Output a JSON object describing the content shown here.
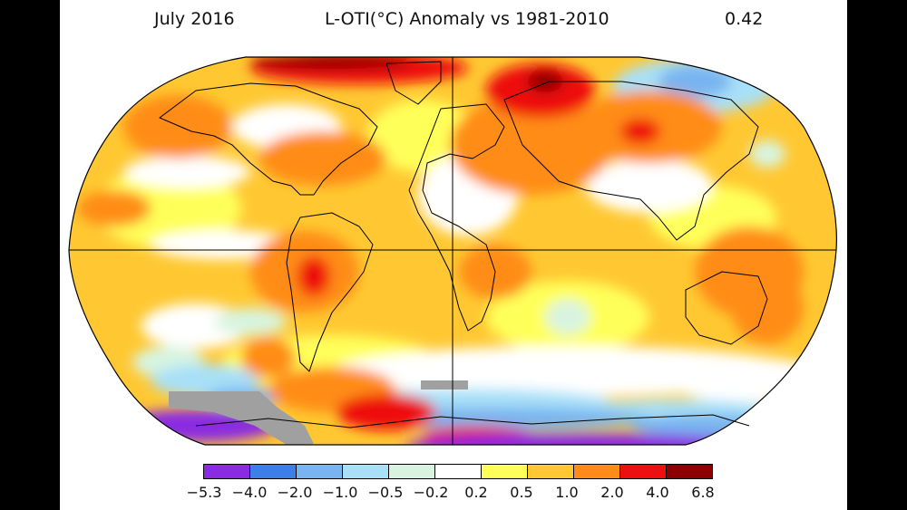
{
  "header": {
    "date": "July 2016",
    "title": "L-OTI(°C) Anomaly vs 1981-2010",
    "global_mean": "0.42"
  },
  "colorbar": {
    "labels": [
      "−5.3",
      "−4.0",
      "−2.0",
      "−1.0",
      "−0.5",
      "−0.2",
      "0.2",
      "0.5",
      "1.0",
      "2.0",
      "4.0",
      "6.8"
    ],
    "colors": [
      "#8a2be2",
      "#3d7fe6",
      "#78b4f0",
      "#a8e0f8",
      "#d8f4e0",
      "#ffffff",
      "#ffff5a",
      "#ffc832",
      "#ff8c19",
      "#ee1010",
      "#8b0000"
    ]
  },
  "map": {
    "projection": "robinson",
    "land_outline_color": "#000000",
    "no_data_color": "#a0a0a0"
  }
}
